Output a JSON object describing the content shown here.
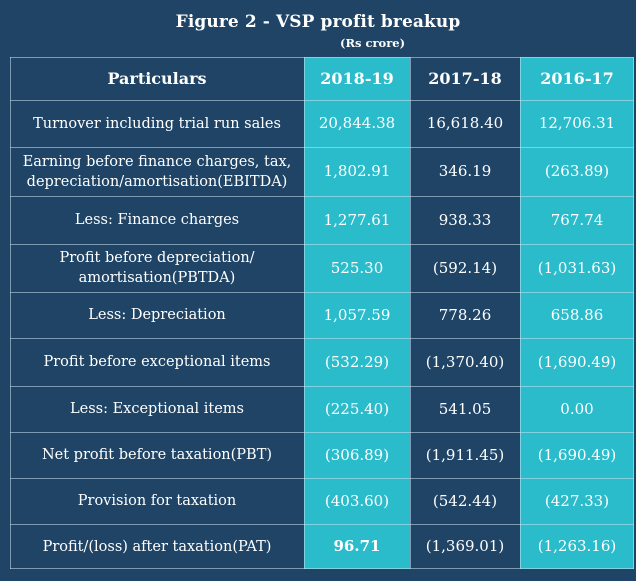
{
  "title": "Figure 2 - VSP profit breakup",
  "subtitle": "(Rs crore)",
  "chart_data": {
    "type": "table",
    "columns": [
      "Particulars",
      "2018-19",
      "2017-18",
      "2016-17"
    ],
    "rows": [
      {
        "label": "Turnover including trial run sales",
        "values": [
          "20,844.38",
          "16,618.40",
          "12,706.31"
        ]
      },
      {
        "label": "Earning before finance charges, tax, depreciation/amortisation(EBITDA)",
        "values": [
          "1,802.91",
          "346.19",
          "(263.89)"
        ]
      },
      {
        "label": "Less: Finance charges",
        "values": [
          "1,277.61",
          "938.33",
          "767.74"
        ]
      },
      {
        "label": "Profit before depreciation/ amortisation(PBTDA)",
        "values": [
          "525.30",
          "(592.14)",
          "(1,031.63)"
        ]
      },
      {
        "label": "Less: Depreciation",
        "values": [
          "1,057.59",
          "778.26",
          "658.86"
        ]
      },
      {
        "label": "Profit before exceptional items",
        "values": [
          "(532.29)",
          "(1,370.40)",
          "(1,690.49)"
        ]
      },
      {
        "label": "Less: Exceptional items",
        "values": [
          "(225.40)",
          "541.05",
          "0.00"
        ]
      },
      {
        "label": "Net profit before taxation(PBT)",
        "values": [
          "(306.89)",
          "(1,911.45)",
          "(1,690.49)"
        ]
      },
      {
        "label": "Provision for taxation",
        "values": [
          "(403.60)",
          "(542.44)",
          "(427.33)"
        ]
      },
      {
        "label": "Profit/(loss) after taxation(PAT)",
        "values": [
          "96.71",
          "(1,369.01)",
          "(1,263.16)"
        ]
      }
    ]
  },
  "colors": {
    "background": "#1f4466",
    "highlight_column": "#2bbccc",
    "text": "#ffffff"
  }
}
